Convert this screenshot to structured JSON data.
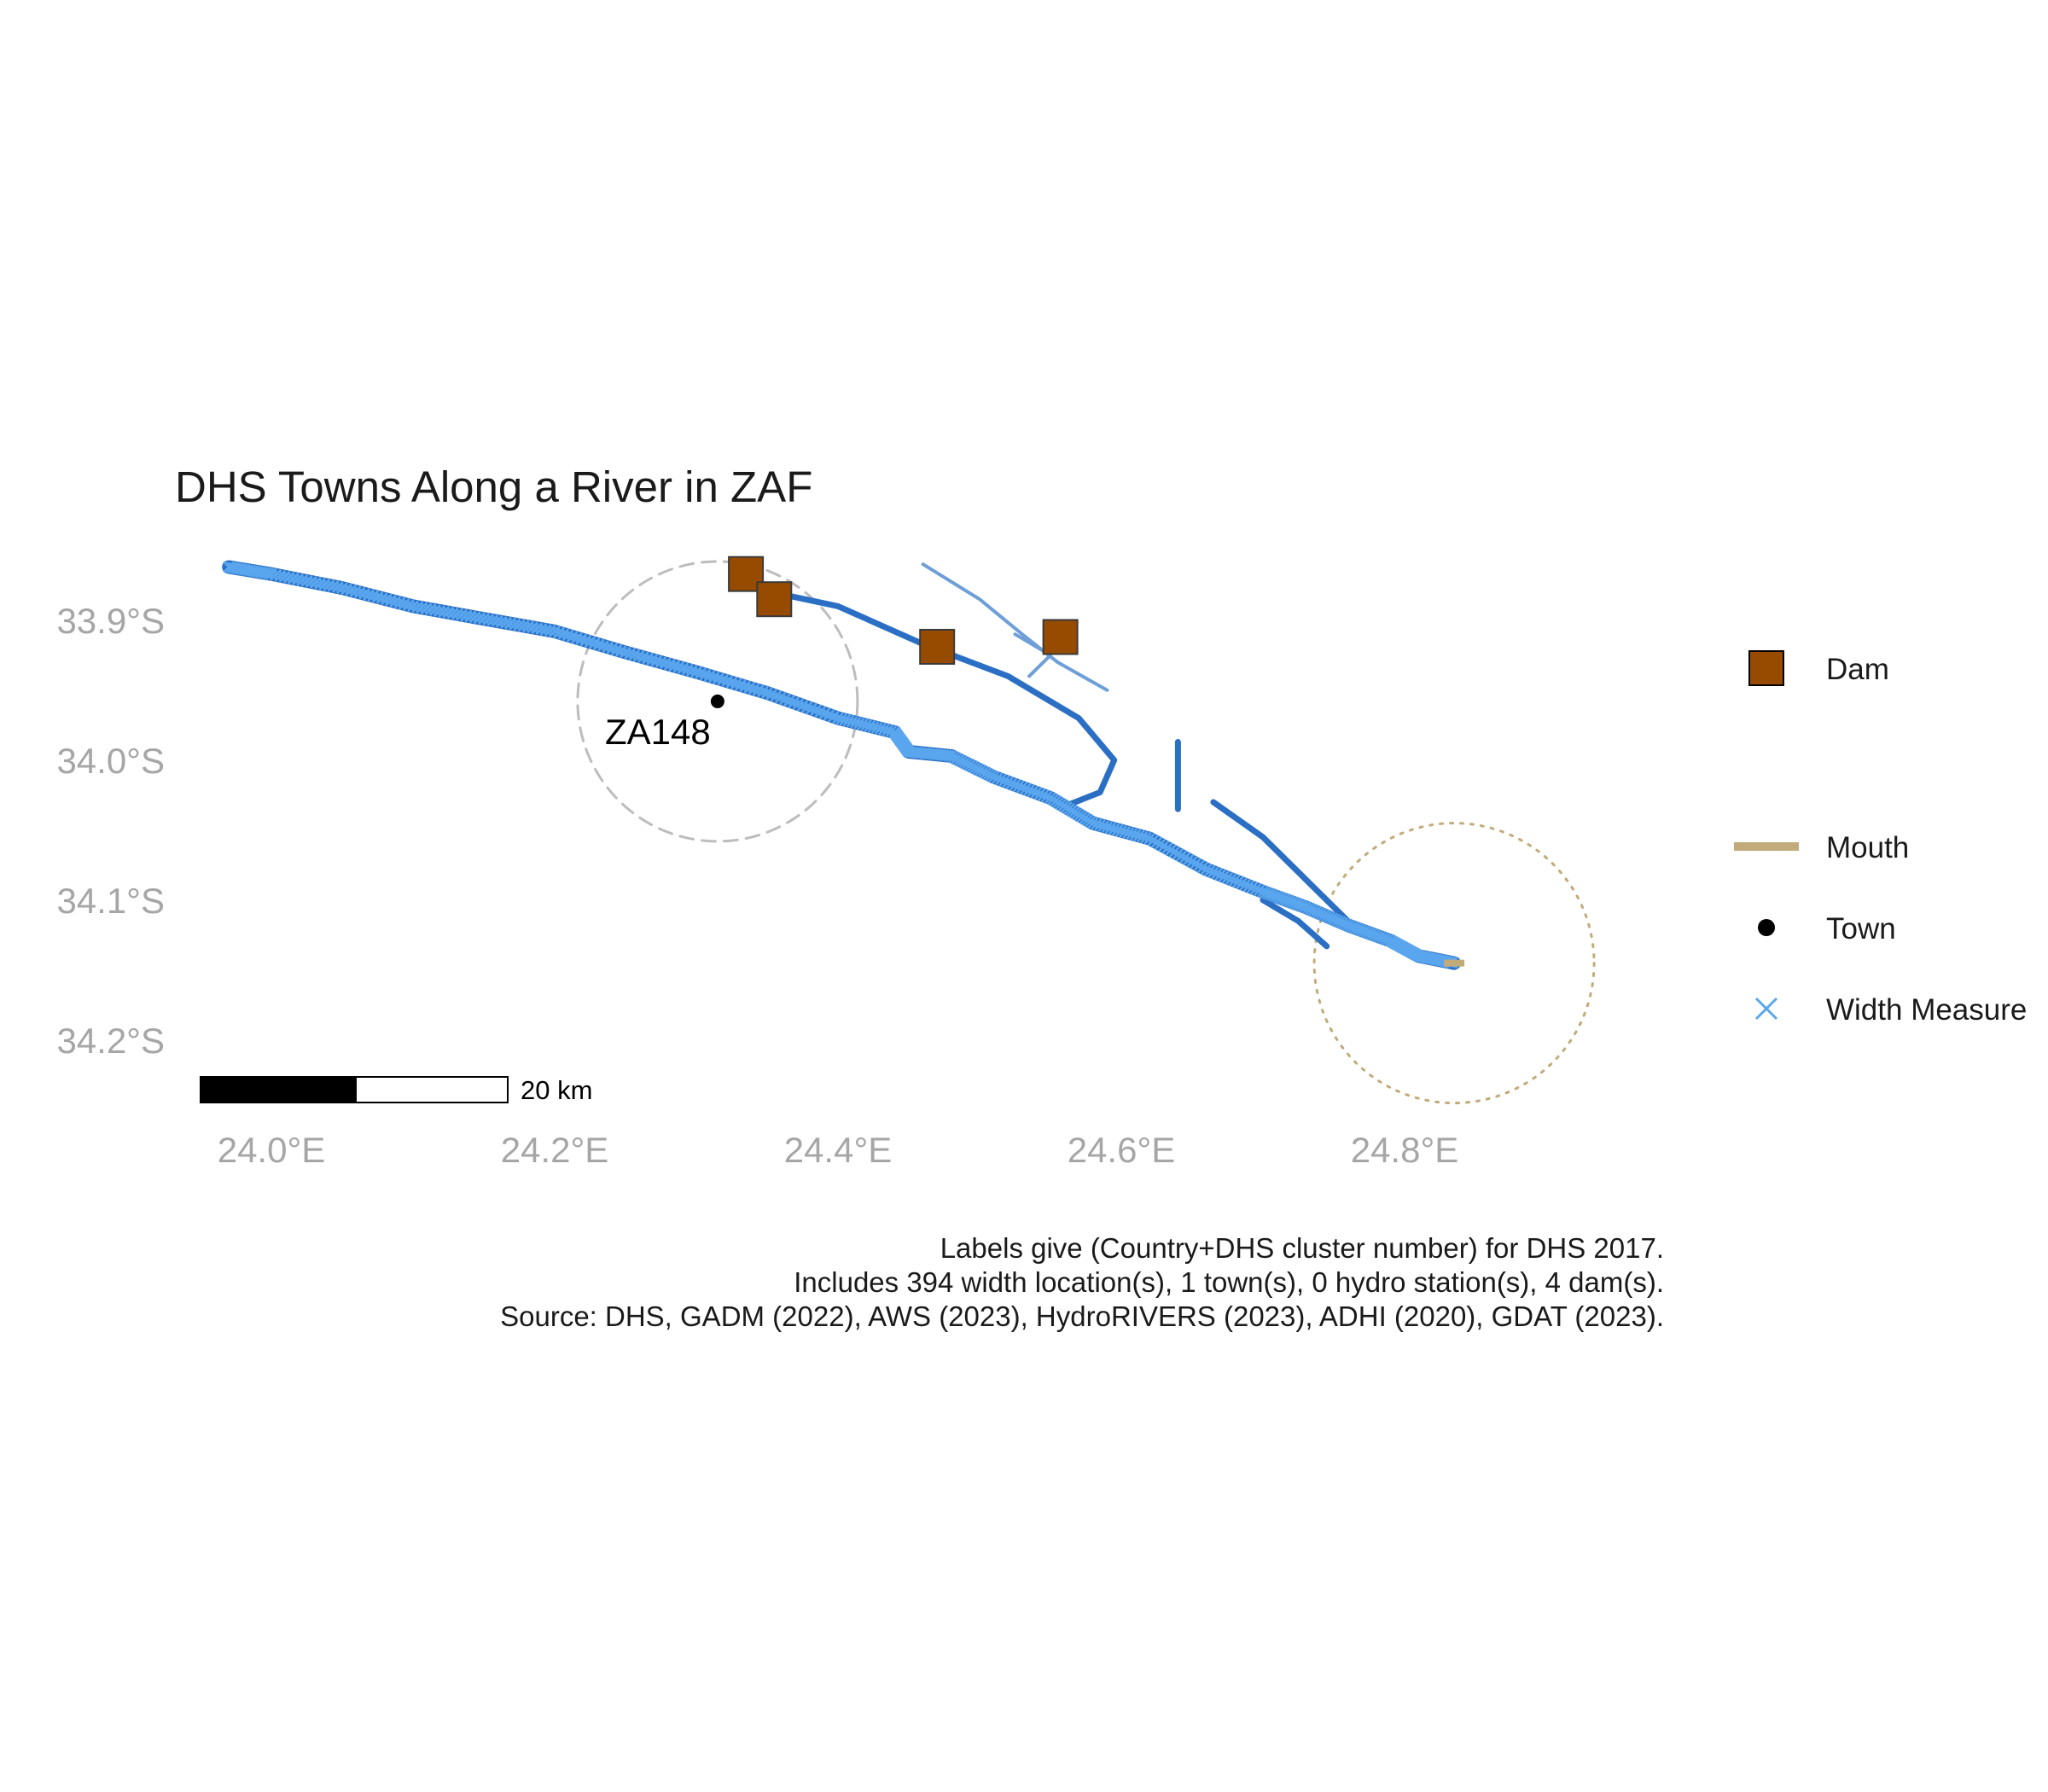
{
  "title": "DHS Towns Along a River in ZAF",
  "axes": {
    "x_ticks": [
      "24.0°E",
      "24.2°E",
      "24.4°E",
      "24.6°E",
      "24.8°E"
    ],
    "y_ticks": [
      "33.9°S",
      "34.0°S",
      "34.1°S",
      "34.2°S"
    ]
  },
  "scale_bar": {
    "label": "20 km"
  },
  "legend": {
    "dam": "Dam",
    "mouth": "Mouth",
    "town": "Town",
    "width_measure": "Width Measure"
  },
  "caption": {
    "line1": "Labels give (Country+DHS cluster number) for DHS 2017.",
    "line2": "Includes 394 width location(s), 1 town(s), 0 hydro station(s), 4 dam(s).",
    "line3": "Source: DHS, GADM (2022), AWS (2023), HydroRIVERS (2023), ADHI (2020), GDAT (2023)."
  },
  "colors": {
    "main_river": "#2b6fc4",
    "width_measure": "#5aa6ee",
    "tributary": "#6f9fd8",
    "dam_fill": "#964b00",
    "mouth": "#c2ab7a",
    "town": "#000000",
    "axis_text": "#a6a6a6"
  },
  "chart_data": {
    "type": "map",
    "title": "DHS Towns Along a River in ZAF",
    "lon_range": [
      23.95,
      24.93
    ],
    "lat_range": [
      -34.25,
      -33.84
    ],
    "towns": [
      {
        "id": "ZA148",
        "lon": 24.315,
        "lat": -33.953
      }
    ],
    "dams": [
      {
        "lon": 24.335,
        "lat": -33.862
      },
      {
        "lon": 24.355,
        "lat": -33.88
      },
      {
        "lon": 24.47,
        "lat": -33.914
      },
      {
        "lon": 24.557,
        "lat": -33.907
      }
    ],
    "mouth": {
      "lon": 24.835,
      "lat": -34.14
    },
    "main_river": [
      [
        23.97,
        -33.857
      ],
      [
        24.0,
        -33.862
      ],
      [
        24.05,
        -33.872
      ],
      [
        24.1,
        -33.885
      ],
      [
        24.15,
        -33.894
      ],
      [
        24.2,
        -33.903
      ],
      [
        24.25,
        -33.918
      ],
      [
        24.3,
        -33.932
      ],
      [
        24.35,
        -33.947
      ],
      [
        24.4,
        -33.965
      ],
      [
        24.44,
        -33.975
      ],
      [
        24.45,
        -33.989
      ],
      [
        24.48,
        -33.992
      ],
      [
        24.51,
        -34.007
      ],
      [
        24.55,
        -34.022
      ],
      [
        24.58,
        -34.04
      ],
      [
        24.62,
        -34.051
      ],
      [
        24.66,
        -34.073
      ],
      [
        24.7,
        -34.089
      ],
      [
        24.73,
        -34.1
      ],
      [
        24.76,
        -34.113
      ],
      [
        24.79,
        -34.124
      ],
      [
        24.81,
        -34.135
      ],
      [
        24.835,
        -34.14
      ]
    ],
    "tributaries": [
      [
        [
          24.33,
          -33.87
        ],
        [
          24.4,
          -33.885
        ],
        [
          24.46,
          -33.912
        ],
        [
          24.52,
          -33.935
        ],
        [
          24.57,
          -33.965
        ],
        [
          24.595,
          -33.995
        ],
        [
          24.585,
          -34.018
        ],
        [
          24.56,
          -34.028
        ]
      ],
      [
        [
          24.46,
          -33.855
        ],
        [
          24.5,
          -33.88
        ],
        [
          24.53,
          -33.905
        ],
        [
          24.555,
          -33.925
        ],
        [
          24.59,
          -33.945
        ]
      ],
      [
        [
          24.525,
          -33.905
        ],
        [
          24.55,
          -33.92
        ],
        [
          24.535,
          -33.935
        ]
      ],
      [
        [
          24.64,
          -33.982
        ],
        [
          24.64,
          -34.03
        ]
      ],
      [
        [
          24.665,
          -34.025
        ],
        [
          24.7,
          -34.05
        ],
        [
          24.73,
          -34.08
        ],
        [
          24.76,
          -34.11
        ]
      ],
      [
        [
          24.7,
          -34.095
        ],
        [
          24.725,
          -34.11
        ],
        [
          24.745,
          -34.128
        ]
      ]
    ],
    "buffers": [
      {
        "center": "town",
        "lon": 24.315,
        "lat": -33.953,
        "radius_km": 10,
        "style": "dashed"
      },
      {
        "center": "mouth",
        "lon": 24.835,
        "lat": -34.14,
        "radius_km": 10,
        "style": "dotted"
      }
    ]
  }
}
